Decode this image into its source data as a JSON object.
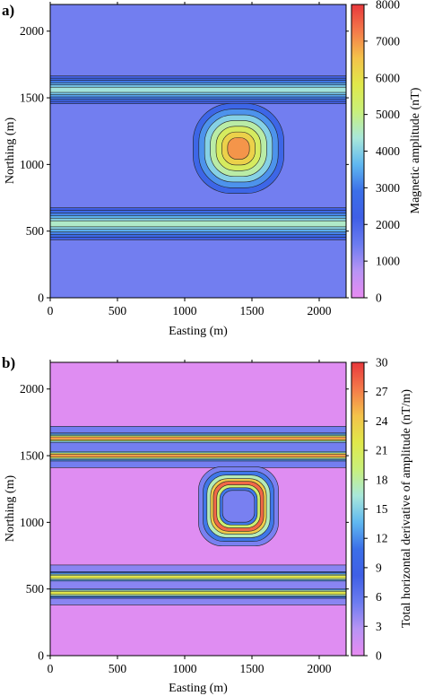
{
  "chart_data": [
    {
      "panel_label": "a)",
      "type": "heatmap",
      "xlabel": "Easting (m)",
      "ylabel": "Northing (m)",
      "xlim": [
        0,
        2200
      ],
      "ylim": [
        0,
        2200
      ],
      "xticks": [
        "0",
        "500",
        "1000",
        "1500",
        "2000"
      ],
      "yticks": [
        "0",
        "500",
        "1000",
        "1500",
        "2000"
      ],
      "colorbar": {
        "label": "Magnetic amplitude (nT)",
        "range": [
          0,
          8000
        ],
        "ticks": [
          "0",
          "1000",
          "2000",
          "3000",
          "4000",
          "5000",
          "6000",
          "7000",
          "8000"
        ]
      },
      "background_value": 1400,
      "features": [
        {
          "shape": "east-west-band",
          "center_northing": 1560,
          "width": 130,
          "peak_value": 4300
        },
        {
          "shape": "east-west-band",
          "center_northing": 555,
          "width": 150,
          "peak_value": 4500
        },
        {
          "shape": "rounded-square",
          "center": [
            1400,
            1120
          ],
          "half_size": 270,
          "peak_value": 7000
        }
      ],
      "contours": true
    },
    {
      "panel_label": "b)",
      "type": "heatmap",
      "xlabel": "Easting (m)",
      "ylabel": "Northing (m)",
      "xlim": [
        0,
        2200
      ],
      "ylim": [
        0,
        2200
      ],
      "xticks": [
        "0",
        "500",
        "1000",
        "1500",
        "2000"
      ],
      "yticks": [
        "0",
        "500",
        "1000",
        "1500",
        "2000"
      ],
      "colorbar": {
        "label": "Total horizontal derivative of amplitude (nT/m)",
        "range": [
          0,
          30
        ],
        "ticks": [
          "0",
          "3",
          "6",
          "9",
          "12",
          "15",
          "18",
          "21",
          "24",
          "27",
          "30"
        ]
      },
      "background_value": 0.5,
      "features": [
        {
          "shape": "edge-band-pair",
          "center_northing": 1560,
          "edges": [
            1500,
            1630
          ],
          "peak_value": 26
        },
        {
          "shape": "edge-band-pair",
          "center_northing": 530,
          "edges": [
            470,
            590
          ],
          "peak_value": 22
        },
        {
          "shape": "square-ring",
          "center": [
            1400,
            1120
          ],
          "half_size": 170,
          "peak_value": 28
        }
      ],
      "contours": true
    }
  ],
  "colors": {
    "colormap": [
      "#e88bf2",
      "#b894f4",
      "#6c7cf0",
      "#3f5fe6",
      "#3b6fe8",
      "#60b8f0",
      "#a9e8da",
      "#c9f07a",
      "#e0e84a",
      "#f4c24a",
      "#f47a4a",
      "#e8383c"
    ],
    "contour_line": "#222222"
  }
}
